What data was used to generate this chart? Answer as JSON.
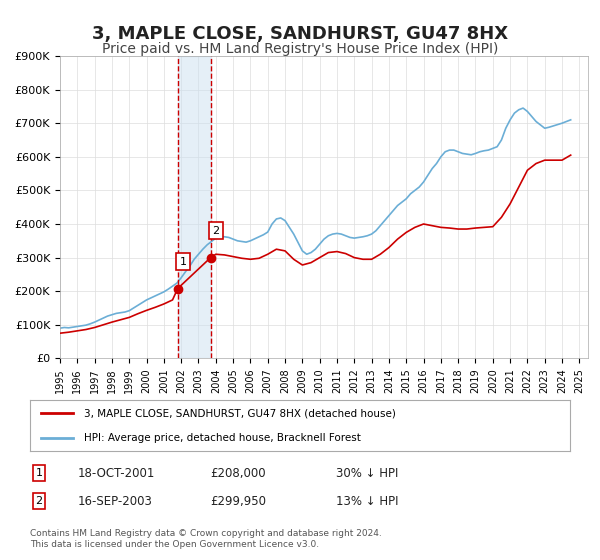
{
  "title": "3, MAPLE CLOSE, SANDHURST, GU47 8HX",
  "subtitle": "Price paid vs. HM Land Registry's House Price Index (HPI)",
  "title_fontsize": 13,
  "subtitle_fontsize": 10,
  "ylabel": "",
  "ylim": [
    0,
    900000
  ],
  "yticks": [
    0,
    100000,
    200000,
    300000,
    400000,
    500000,
    600000,
    700000,
    800000,
    900000
  ],
  "ytick_labels": [
    "£0",
    "£100K",
    "£200K",
    "£300K",
    "£400K",
    "£500K",
    "£600K",
    "£700K",
    "£800K",
    "£900K"
  ],
  "xlim_start": 1995.0,
  "xlim_end": 2025.5,
  "xtick_years": [
    1995,
    1996,
    1997,
    1998,
    1999,
    2000,
    2001,
    2002,
    2003,
    2004,
    2005,
    2006,
    2007,
    2008,
    2009,
    2010,
    2011,
    2012,
    2013,
    2014,
    2015,
    2016,
    2017,
    2018,
    2019,
    2020,
    2021,
    2022,
    2023,
    2024,
    2025
  ],
  "hpi_color": "#6baed6",
  "price_color": "#cc0000",
  "shade_color": "#cce0f0",
  "shade_alpha": 0.5,
  "shade_x1": 2001.8,
  "shade_x2": 2003.7,
  "vline1_x": 2001.8,
  "vline2_x": 2003.7,
  "sale1_x": 2001.8,
  "sale1_y": 208000,
  "sale2_x": 2003.7,
  "sale2_y": 299950,
  "legend_price_label": "3, MAPLE CLOSE, SANDHURST, GU47 8HX (detached house)",
  "legend_hpi_label": "HPI: Average price, detached house, Bracknell Forest",
  "table_rows": [
    {
      "num": "1",
      "date": "18-OCT-2001",
      "price": "£208,000",
      "hpi": "30% ↓ HPI"
    },
    {
      "num": "2",
      "date": "16-SEP-2003",
      "price": "£299,950",
      "hpi": "13% ↓ HPI"
    }
  ],
  "footnote": "Contains HM Land Registry data © Crown copyright and database right 2024.\nThis data is licensed under the Open Government Licence v3.0.",
  "background_color": "#ffffff",
  "hpi_data": {
    "years": [
      1995.0,
      1995.25,
      1995.5,
      1995.75,
      1996.0,
      1996.25,
      1996.5,
      1996.75,
      1997.0,
      1997.25,
      1997.5,
      1997.75,
      1998.0,
      1998.25,
      1998.5,
      1998.75,
      1999.0,
      1999.25,
      1999.5,
      1999.75,
      2000.0,
      2000.25,
      2000.5,
      2000.75,
      2001.0,
      2001.25,
      2001.5,
      2001.75,
      2002.0,
      2002.25,
      2002.5,
      2002.75,
      2003.0,
      2003.25,
      2003.5,
      2003.75,
      2004.0,
      2004.25,
      2004.5,
      2004.75,
      2005.0,
      2005.25,
      2005.5,
      2005.75,
      2006.0,
      2006.25,
      2006.5,
      2006.75,
      2007.0,
      2007.25,
      2007.5,
      2007.75,
      2008.0,
      2008.25,
      2008.5,
      2008.75,
      2009.0,
      2009.25,
      2009.5,
      2009.75,
      2010.0,
      2010.25,
      2010.5,
      2010.75,
      2011.0,
      2011.25,
      2011.5,
      2011.75,
      2012.0,
      2012.25,
      2012.5,
      2012.75,
      2013.0,
      2013.25,
      2013.5,
      2013.75,
      2014.0,
      2014.25,
      2014.5,
      2014.75,
      2015.0,
      2015.25,
      2015.5,
      2015.75,
      2016.0,
      2016.25,
      2016.5,
      2016.75,
      2017.0,
      2017.25,
      2017.5,
      2017.75,
      2018.0,
      2018.25,
      2018.5,
      2018.75,
      2019.0,
      2019.25,
      2019.5,
      2019.75,
      2020.0,
      2020.25,
      2020.5,
      2020.75,
      2021.0,
      2021.25,
      2021.5,
      2021.75,
      2022.0,
      2022.25,
      2022.5,
      2022.75,
      2023.0,
      2023.25,
      2023.5,
      2023.75,
      2024.0,
      2024.25,
      2024.5
    ],
    "values": [
      90000,
      92000,
      91000,
      93000,
      95000,
      97000,
      99000,
      103000,
      108000,
      114000,
      120000,
      126000,
      130000,
      134000,
      136000,
      138000,
      142000,
      150000,
      158000,
      166000,
      174000,
      180000,
      186000,
      192000,
      198000,
      206000,
      215000,
      224000,
      240000,
      258000,
      275000,
      295000,
      310000,
      325000,
      338000,
      348000,
      358000,
      362000,
      362000,
      360000,
      355000,
      350000,
      348000,
      346000,
      350000,
      356000,
      362000,
      368000,
      376000,
      400000,
      415000,
      418000,
      410000,
      390000,
      370000,
      345000,
      320000,
      310000,
      315000,
      325000,
      340000,
      355000,
      365000,
      370000,
      372000,
      370000,
      365000,
      360000,
      358000,
      360000,
      362000,
      365000,
      370000,
      380000,
      395000,
      410000,
      425000,
      440000,
      455000,
      465000,
      475000,
      490000,
      500000,
      510000,
      525000,
      545000,
      565000,
      580000,
      600000,
      615000,
      620000,
      620000,
      615000,
      610000,
      608000,
      606000,
      610000,
      615000,
      618000,
      620000,
      625000,
      630000,
      650000,
      685000,
      710000,
      730000,
      740000,
      745000,
      735000,
      720000,
      705000,
      695000,
      685000,
      688000,
      692000,
      696000,
      700000,
      705000,
      710000
    ]
  },
  "price_data": {
    "years": [
      1995.0,
      1995.5,
      1996.0,
      1996.5,
      1997.0,
      1997.5,
      1998.0,
      1998.5,
      1999.0,
      1999.5,
      2000.0,
      2000.5,
      2001.0,
      2001.5,
      2001.8,
      2003.7,
      2004.0,
      2004.5,
      2005.0,
      2005.5,
      2006.0,
      2006.5,
      2007.0,
      2007.5,
      2008.0,
      2008.5,
      2009.0,
      2009.5,
      2010.0,
      2010.5,
      2011.0,
      2011.5,
      2012.0,
      2012.5,
      2013.0,
      2013.5,
      2014.0,
      2014.5,
      2015.0,
      2015.5,
      2016.0,
      2016.5,
      2017.0,
      2017.5,
      2018.0,
      2018.5,
      2019.0,
      2019.5,
      2020.0,
      2020.5,
      2021.0,
      2021.5,
      2022.0,
      2022.5,
      2023.0,
      2023.5,
      2024.0,
      2024.5
    ],
    "values": [
      75000,
      78000,
      82000,
      86000,
      92000,
      100000,
      108000,
      115000,
      122000,
      133000,
      143000,
      152000,
      162000,
      174000,
      208000,
      299950,
      310000,
      308000,
      303000,
      298000,
      295000,
      298000,
      310000,
      325000,
      320000,
      295000,
      278000,
      285000,
      300000,
      315000,
      318000,
      312000,
      300000,
      295000,
      295000,
      310000,
      330000,
      355000,
      375000,
      390000,
      400000,
      395000,
      390000,
      388000,
      385000,
      385000,
      388000,
      390000,
      392000,
      420000,
      460000,
      510000,
      560000,
      580000,
      590000,
      590000,
      590000,
      605000
    ]
  }
}
